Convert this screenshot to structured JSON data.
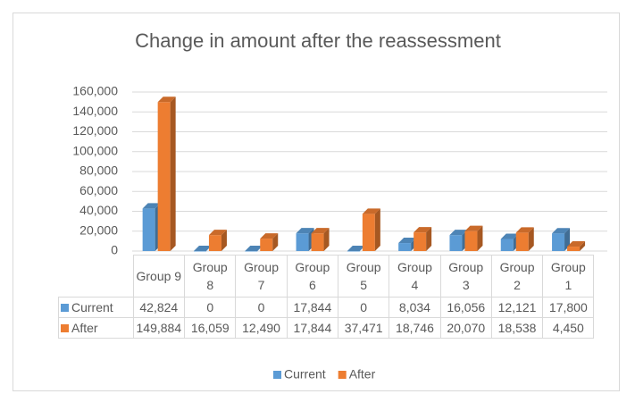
{
  "chart_data": {
    "type": "bar3d",
    "title": "Change in amount after the reassessment",
    "categories": [
      "Group 9",
      "Group 8",
      "Group 7",
      "Group 6",
      "Group 5",
      "Group 4",
      "Group 3",
      "Group 2",
      "Group 1"
    ],
    "series": [
      {
        "name": "Current",
        "color": "#5b9bd5",
        "values": [
          42824,
          0,
          0,
          17844,
          0,
          8034,
          16056,
          12121,
          17800
        ],
        "value_labels": [
          "42,824",
          "0",
          "0",
          "17,844",
          "0",
          "8,034",
          "16,056",
          "12,121",
          "17,800"
        ]
      },
      {
        "name": "After",
        "color": "#ed7d31",
        "values": [
          149884,
          16059,
          12490,
          17844,
          37471,
          18746,
          20070,
          18538,
          4450
        ],
        "value_labels": [
          "149,884",
          "16,059",
          "12,490",
          "17,844",
          "37,471",
          "18,746",
          "20,070",
          "18,538",
          "4,450"
        ]
      }
    ],
    "ylim": [
      0,
      160000
    ],
    "yticks": [
      0,
      {
        "value": 20000,
        "label": "20,000"
      },
      {
        "value": 40000,
        "label": "40,000"
      },
      {
        "value": 60000,
        "label": "60,000"
      },
      {
        "value": 80000,
        "label": "80,000"
      },
      {
        "value": 100000,
        "label": "100,000"
      },
      {
        "value": 120000,
        "label": "120,000"
      },
      {
        "value": 140000,
        "label": "140,000"
      },
      {
        "value": 160000,
        "label": "160,000"
      }
    ],
    "grid": true,
    "legend": "bottom"
  }
}
